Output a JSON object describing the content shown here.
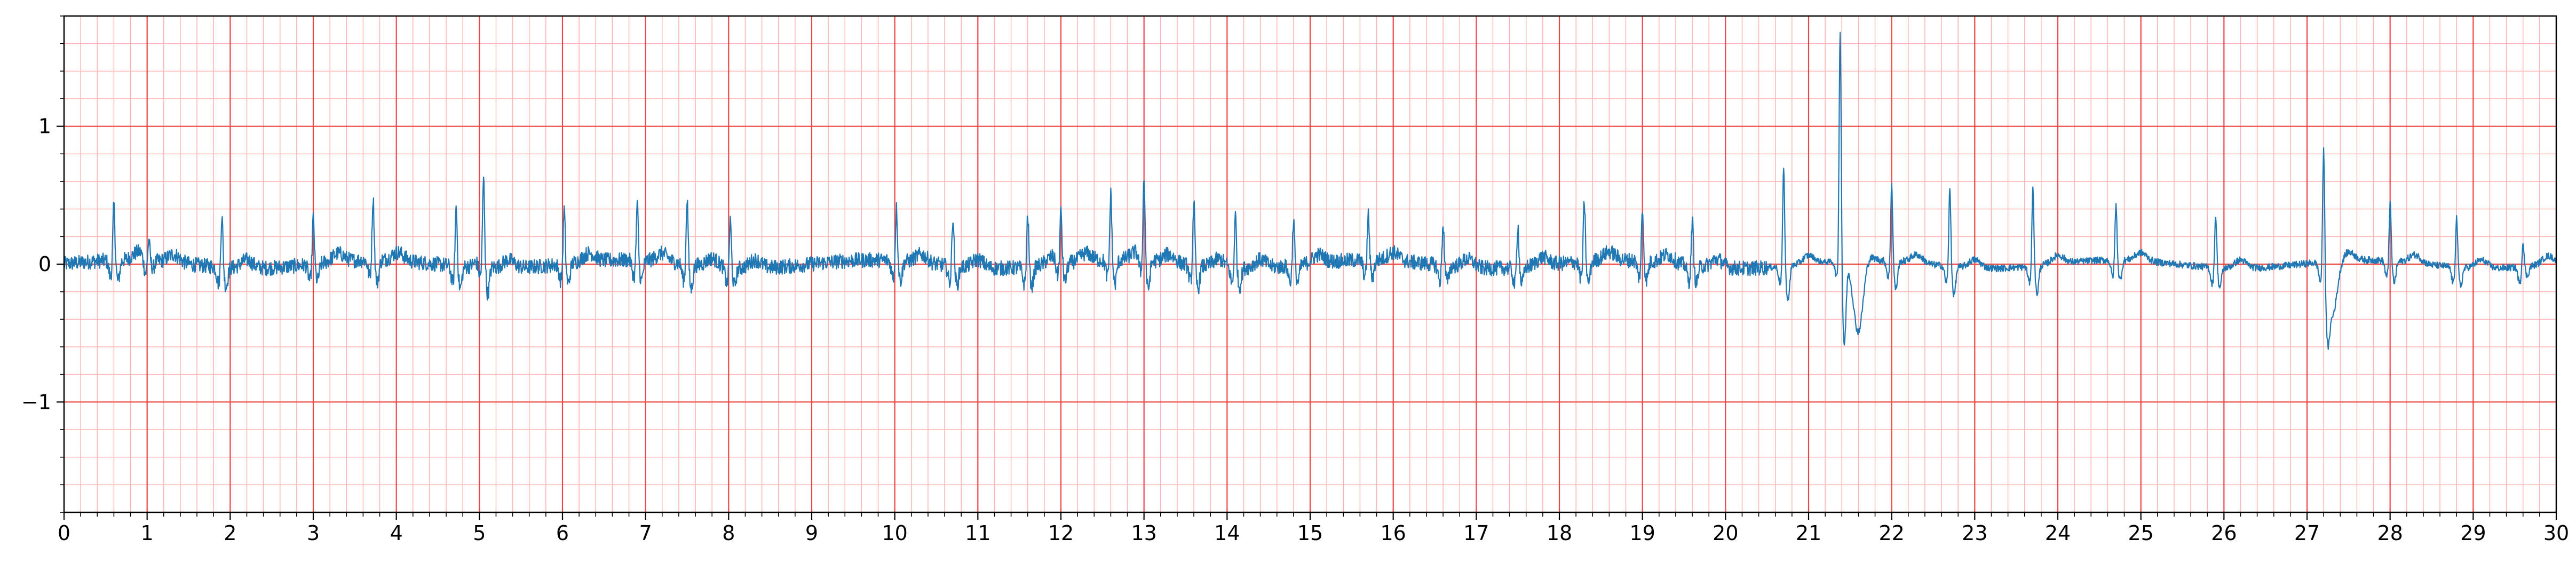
{
  "chart_data": {
    "type": "line",
    "title": "",
    "xlabel": "",
    "ylabel": "",
    "xlim": [
      0,
      30
    ],
    "ylim": [
      -1.8,
      1.8
    ],
    "x_ticks": [
      0,
      1,
      2,
      3,
      4,
      5,
      6,
      7,
      8,
      9,
      10,
      11,
      12,
      13,
      14,
      15,
      16,
      17,
      18,
      19,
      20,
      21,
      22,
      23,
      24,
      25,
      26,
      27,
      28,
      29,
      30
    ],
    "x_tick_labels": [
      "0",
      "1",
      "2",
      "3",
      "4",
      "5",
      "6",
      "7",
      "8",
      "9",
      "10",
      "11",
      "12",
      "13",
      "14",
      "15",
      "16",
      "17",
      "18",
      "19",
      "20",
      "21",
      "22",
      "23",
      "24",
      "25",
      "26",
      "27",
      "28",
      "29",
      "30"
    ],
    "y_ticks": [
      -1,
      0,
      1
    ],
    "y_tick_labels": [
      "−1",
      "0",
      "1"
    ],
    "x_minor_step": 0.2,
    "y_minor_step": 0.2,
    "grid": true,
    "legend": "none",
    "colors": {
      "line": "#1f77b4",
      "major_grid": "#ee4444",
      "minor_grid": "#ffb3b3",
      "axes": "#000000",
      "background": "#ffffff"
    },
    "series": [
      {
        "x": [
          0.6,
          1.02,
          1.9,
          3.0,
          3.72,
          4.72,
          5.05,
          6.02,
          6.9,
          7.5,
          8.02,
          10.02,
          10.7,
          11.6,
          12.0,
          12.6,
          13.0,
          13.6,
          14.1,
          14.8,
          15.7,
          16.6,
          17.5,
          18.3,
          19.0,
          19.6,
          20.7,
          21.38,
          22.0,
          22.7,
          23.7,
          24.7,
          25.9,
          27.2,
          28.0,
          28.8,
          29.6
        ],
        "y": [
          0.43,
          0.15,
          0.4,
          0.35,
          0.47,
          0.45,
          0.62,
          0.42,
          0.42,
          0.5,
          0.36,
          0.4,
          0.38,
          0.4,
          0.38,
          0.5,
          0.6,
          0.48,
          0.4,
          0.35,
          0.35,
          0.32,
          0.33,
          0.45,
          0.38,
          0.35,
          0.72,
          1.72,
          0.58,
          0.58,
          0.58,
          0.42,
          0.4,
          0.95,
          0.44,
          0.38,
          0.2
        ]
      }
    ]
  }
}
